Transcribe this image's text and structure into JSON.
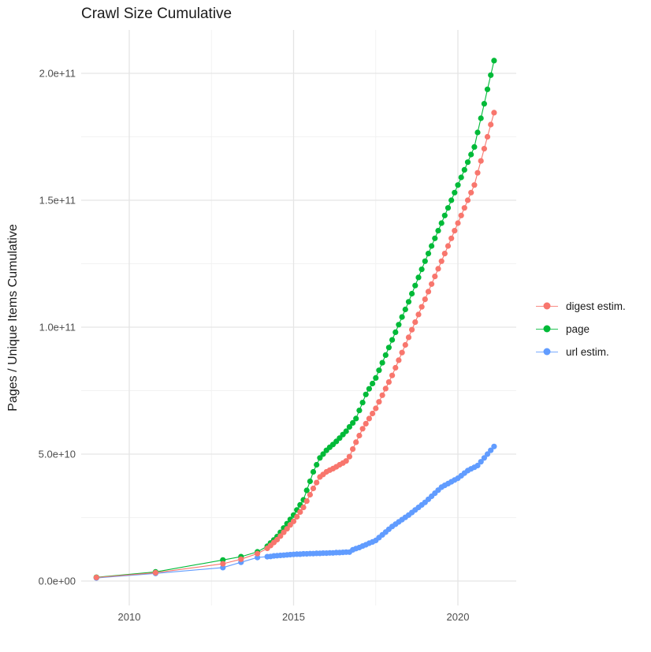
{
  "title": "Crawl Size Cumulative",
  "chart_data": {
    "type": "line",
    "title": "Crawl Size Cumulative",
    "xlabel": "",
    "ylabel": "Pages / Unique Items Cumulative",
    "legend_position": "right",
    "grid": "major+minor",
    "background": "#ffffff",
    "gridline_major_color": "#e5e5e5",
    "gridline_minor_color": "#f2f2f2",
    "axis_text_color": "#4d4d4d",
    "unit_multiplier": 1000000000,
    "x_axis": {
      "range_years": [
        2008.5,
        2021.8
      ],
      "major_ticks": [
        {
          "value": 2010,
          "label": "2010"
        },
        {
          "value": 2015,
          "label": "2015"
        },
        {
          "value": 2020,
          "label": "2020"
        }
      ],
      "minor_ticks": [
        2012.5,
        2017.5
      ]
    },
    "y_axis": {
      "range": [
        0,
        216000000000
      ],
      "major_ticks": [
        {
          "value_billions": 0,
          "label": "0.0e+00"
        },
        {
          "value_billions": 50,
          "label": "5.0e+10"
        },
        {
          "value_billions": 100,
          "label": "1.0e+11"
        },
        {
          "value_billions": 150,
          "label": "1.5e+11"
        },
        {
          "value_billions": 200,
          "label": "2.0e+11"
        }
      ],
      "minor_ticks_billions": [
        25,
        75,
        125,
        175
      ]
    },
    "series": [
      {
        "name": "url estim.",
        "color": "#619CFF",
        "points_year_billions": [
          [
            2009.0,
            1.2
          ],
          [
            2010.8,
            3.0
          ],
          [
            2012.85,
            5.3
          ],
          [
            2013.4,
            7.4
          ],
          [
            2013.9,
            9.3
          ],
          [
            2014.2,
            9.6
          ],
          [
            2014.3,
            9.7
          ],
          [
            2014.4,
            9.9
          ],
          [
            2014.5,
            10.0
          ],
          [
            2014.6,
            10.1
          ],
          [
            2014.7,
            10.2
          ],
          [
            2014.8,
            10.3
          ],
          [
            2014.9,
            10.4
          ],
          [
            2015.0,
            10.5
          ],
          [
            2015.1,
            10.6
          ],
          [
            2015.2,
            10.6
          ],
          [
            2015.3,
            10.7
          ],
          [
            2015.4,
            10.7
          ],
          [
            2015.5,
            10.8
          ],
          [
            2015.6,
            10.8
          ],
          [
            2015.7,
            10.9
          ],
          [
            2015.8,
            10.9
          ],
          [
            2015.9,
            11.0
          ],
          [
            2016.0,
            11.0
          ],
          [
            2016.1,
            11.1
          ],
          [
            2016.2,
            11.1
          ],
          [
            2016.3,
            11.2
          ],
          [
            2016.4,
            11.2
          ],
          [
            2016.5,
            11.3
          ],
          [
            2016.6,
            11.4
          ],
          [
            2016.7,
            11.4
          ],
          [
            2016.8,
            12.3
          ],
          [
            2016.9,
            12.8
          ],
          [
            2017.0,
            13.2
          ],
          [
            2017.1,
            13.8
          ],
          [
            2017.2,
            14.3
          ],
          [
            2017.3,
            14.9
          ],
          [
            2017.4,
            15.4
          ],
          [
            2017.5,
            16.0
          ],
          [
            2017.6,
            17.1
          ],
          [
            2017.7,
            18.2
          ],
          [
            2017.8,
            19.3
          ],
          [
            2017.9,
            20.4
          ],
          [
            2018.0,
            21.5
          ],
          [
            2018.1,
            22.4
          ],
          [
            2018.2,
            23.3
          ],
          [
            2018.3,
            24.2
          ],
          [
            2018.4,
            25.1
          ],
          [
            2018.5,
            26.0
          ],
          [
            2018.6,
            27.0
          ],
          [
            2018.7,
            28.0
          ],
          [
            2018.8,
            29.0
          ],
          [
            2018.9,
            30.0
          ],
          [
            2019.0,
            31.0
          ],
          [
            2019.1,
            32.2
          ],
          [
            2019.2,
            33.4
          ],
          [
            2019.3,
            34.6
          ],
          [
            2019.4,
            35.8
          ],
          [
            2019.5,
            37.0
          ],
          [
            2019.6,
            37.7
          ],
          [
            2019.7,
            38.4
          ],
          [
            2019.8,
            39.1
          ],
          [
            2019.9,
            39.8
          ],
          [
            2020.0,
            40.5
          ],
          [
            2020.1,
            41.5
          ],
          [
            2020.2,
            42.5
          ],
          [
            2020.3,
            43.5
          ],
          [
            2020.4,
            44.2
          ],
          [
            2020.5,
            44.8
          ],
          [
            2020.6,
            45.5
          ],
          [
            2020.7,
            47.0
          ],
          [
            2020.8,
            48.5
          ],
          [
            2020.9,
            50.0
          ],
          [
            2021.0,
            51.5
          ],
          [
            2021.1,
            53.0
          ]
        ]
      },
      {
        "name": "page",
        "color": "#00BA38",
        "points_year_billions": [
          [
            2009.0,
            1.5
          ],
          [
            2010.8,
            3.6
          ],
          [
            2012.85,
            8.3
          ],
          [
            2013.4,
            9.6
          ],
          [
            2013.9,
            11.5
          ],
          [
            2014.2,
            13.7
          ],
          [
            2014.3,
            15.0
          ],
          [
            2014.4,
            16.2
          ],
          [
            2014.5,
            17.5
          ],
          [
            2014.6,
            19.2
          ],
          [
            2014.7,
            20.9
          ],
          [
            2014.8,
            22.6
          ],
          [
            2014.9,
            24.3
          ],
          [
            2015.0,
            26.0
          ],
          [
            2015.1,
            28.0
          ],
          [
            2015.2,
            30.0
          ],
          [
            2015.3,
            32.0
          ],
          [
            2015.4,
            35.7
          ],
          [
            2015.5,
            39.3
          ],
          [
            2015.6,
            43.0
          ],
          [
            2015.7,
            45.8
          ],
          [
            2015.8,
            48.5
          ],
          [
            2015.9,
            50.0
          ],
          [
            2016.0,
            51.5
          ],
          [
            2016.1,
            52.7
          ],
          [
            2016.2,
            53.8
          ],
          [
            2016.3,
            55.0
          ],
          [
            2016.4,
            56.3
          ],
          [
            2016.5,
            57.7
          ],
          [
            2016.6,
            59.0
          ],
          [
            2016.7,
            60.7
          ],
          [
            2016.8,
            62.3
          ],
          [
            2016.9,
            64.0
          ],
          [
            2017.0,
            67.2
          ],
          [
            2017.1,
            70.3
          ],
          [
            2017.2,
            73.5
          ],
          [
            2017.3,
            75.7
          ],
          [
            2017.4,
            77.8
          ],
          [
            2017.5,
            80.0
          ],
          [
            2017.6,
            83.0
          ],
          [
            2017.7,
            86.0
          ],
          [
            2017.8,
            89.0
          ],
          [
            2017.9,
            92.0
          ],
          [
            2018.0,
            95.0
          ],
          [
            2018.1,
            98.0
          ],
          [
            2018.2,
            101.0
          ],
          [
            2018.3,
            104.0
          ],
          [
            2018.4,
            107.0
          ],
          [
            2018.5,
            110.0
          ],
          [
            2018.6,
            113.2
          ],
          [
            2018.7,
            116.4
          ],
          [
            2018.8,
            119.6
          ],
          [
            2018.9,
            122.8
          ],
          [
            2019.0,
            126.0
          ],
          [
            2019.1,
            129.0
          ],
          [
            2019.2,
            132.0
          ],
          [
            2019.3,
            135.0
          ],
          [
            2019.4,
            138.0
          ],
          [
            2019.5,
            141.0
          ],
          [
            2019.6,
            144.0
          ],
          [
            2019.7,
            147.0
          ],
          [
            2019.8,
            150.0
          ],
          [
            2019.9,
            153.0
          ],
          [
            2020.0,
            156.0
          ],
          [
            2020.1,
            159.0
          ],
          [
            2020.2,
            162.0
          ],
          [
            2020.3,
            165.0
          ],
          [
            2020.4,
            168.0
          ],
          [
            2020.5,
            171.0
          ],
          [
            2020.6,
            176.7
          ],
          [
            2020.7,
            182.3
          ],
          [
            2020.8,
            188.0
          ],
          [
            2020.9,
            193.7
          ],
          [
            2021.0,
            199.3
          ],
          [
            2021.1,
            205.0
          ]
        ]
      },
      {
        "name": "digest estim.",
        "color": "#F8766D",
        "points_year_billions": [
          [
            2009.0,
            1.4
          ],
          [
            2010.8,
            3.3
          ],
          [
            2012.85,
            6.8
          ],
          [
            2013.4,
            8.6
          ],
          [
            2013.9,
            10.8
          ],
          [
            2014.2,
            12.9
          ],
          [
            2014.3,
            14.0
          ],
          [
            2014.4,
            15.2
          ],
          [
            2014.5,
            16.3
          ],
          [
            2014.6,
            17.7
          ],
          [
            2014.7,
            19.2
          ],
          [
            2014.8,
            20.6
          ],
          [
            2014.9,
            22.1
          ],
          [
            2015.0,
            23.5
          ],
          [
            2015.1,
            25.3
          ],
          [
            2015.2,
            27.2
          ],
          [
            2015.3,
            29.0
          ],
          [
            2015.4,
            31.5
          ],
          [
            2015.5,
            34.0
          ],
          [
            2015.6,
            36.5
          ],
          [
            2015.7,
            38.8
          ],
          [
            2015.8,
            41.0
          ],
          [
            2015.9,
            42.0
          ],
          [
            2016.0,
            43.0
          ],
          [
            2016.1,
            43.7
          ],
          [
            2016.2,
            44.3
          ],
          [
            2016.3,
            45.0
          ],
          [
            2016.4,
            45.8
          ],
          [
            2016.5,
            46.5
          ],
          [
            2016.6,
            47.3
          ],
          [
            2016.7,
            49.0
          ],
          [
            2016.8,
            52.0
          ],
          [
            2016.9,
            54.7
          ],
          [
            2017.0,
            57.3
          ],
          [
            2017.1,
            60.0
          ],
          [
            2017.2,
            62.0
          ],
          [
            2017.3,
            64.0
          ],
          [
            2017.4,
            66.0
          ],
          [
            2017.5,
            68.0
          ],
          [
            2017.6,
            70.6
          ],
          [
            2017.7,
            73.2
          ],
          [
            2017.8,
            75.8
          ],
          [
            2017.9,
            78.4
          ],
          [
            2018.0,
            81.0
          ],
          [
            2018.1,
            84.0
          ],
          [
            2018.2,
            87.0
          ],
          [
            2018.3,
            90.0
          ],
          [
            2018.4,
            93.0
          ],
          [
            2018.5,
            96.0
          ],
          [
            2018.6,
            99.0
          ],
          [
            2018.7,
            102.0
          ],
          [
            2018.8,
            105.0
          ],
          [
            2018.9,
            108.0
          ],
          [
            2019.0,
            111.0
          ],
          [
            2019.1,
            114.0
          ],
          [
            2019.2,
            117.0
          ],
          [
            2019.3,
            120.0
          ],
          [
            2019.4,
            123.0
          ],
          [
            2019.5,
            126.0
          ],
          [
            2019.6,
            129.0
          ],
          [
            2019.7,
            132.0
          ],
          [
            2019.8,
            135.0
          ],
          [
            2019.9,
            138.0
          ],
          [
            2020.0,
            141.0
          ],
          [
            2020.1,
            144.0
          ],
          [
            2020.2,
            147.0
          ],
          [
            2020.3,
            150.0
          ],
          [
            2020.4,
            153.0
          ],
          [
            2020.5,
            156.0
          ],
          [
            2020.6,
            160.8
          ],
          [
            2020.7,
            165.5
          ],
          [
            2020.8,
            170.3
          ],
          [
            2020.9,
            175.0
          ],
          [
            2021.0,
            179.8
          ],
          [
            2021.1,
            184.5
          ]
        ]
      }
    ],
    "legend_order": [
      "digest estim.",
      "page",
      "url estim."
    ]
  }
}
